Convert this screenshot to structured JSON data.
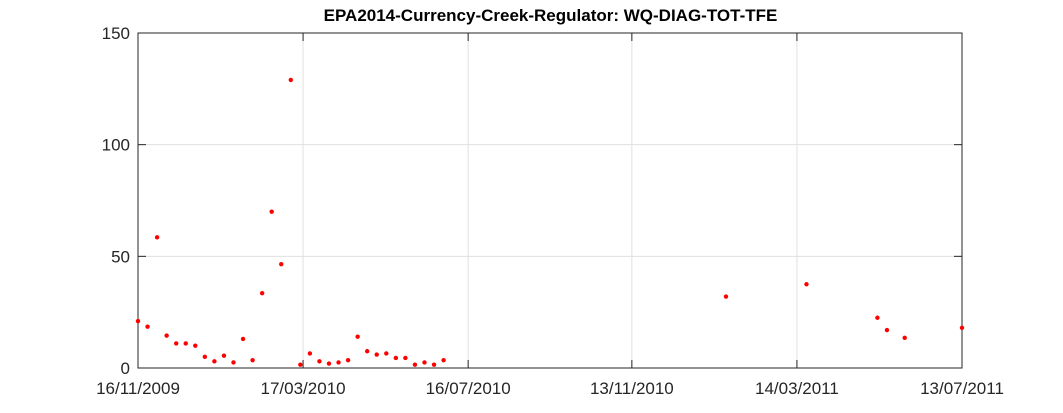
{
  "chart_data": {
    "type": "scatter",
    "title": "EPA2014-Currency-Creek-Regulator: WQ-DIAG-TOT-TFE",
    "xlabel": "",
    "ylabel": "",
    "xlim": [
      "2009-11-16",
      "2011-07-13"
    ],
    "ylim": [
      0,
      150
    ],
    "x_ticks": [
      "2009-11-16",
      "2010-03-17",
      "2010-07-16",
      "2010-11-13",
      "2011-03-14",
      "2011-07-13"
    ],
    "x_tick_labels": [
      "16/11/2009",
      "17/03/2010",
      "16/07/2010",
      "13/11/2010",
      "14/03/2011",
      "13/07/2011"
    ],
    "y_ticks": [
      0,
      50,
      100,
      150
    ],
    "y_tick_labels": [
      "0",
      "50",
      "100",
      "150"
    ],
    "grid": true,
    "marker_color": "#ff0000",
    "series": [
      {
        "points": [
          {
            "x": "2009-11-16",
            "y": 21
          },
          {
            "x": "2009-11-23",
            "y": 18.5
          },
          {
            "x": "2009-11-30",
            "y": 58.5
          },
          {
            "x": "2009-12-07",
            "y": 14.5
          },
          {
            "x": "2009-12-14",
            "y": 11
          },
          {
            "x": "2009-12-21",
            "y": 11
          },
          {
            "x": "2009-12-28",
            "y": 10
          },
          {
            "x": "2010-01-04",
            "y": 5
          },
          {
            "x": "2010-01-11",
            "y": 3
          },
          {
            "x": "2010-01-18",
            "y": 5.5
          },
          {
            "x": "2010-01-25",
            "y": 2.5
          },
          {
            "x": "2010-02-01",
            "y": 13
          },
          {
            "x": "2010-02-08",
            "y": 3.5
          },
          {
            "x": "2010-02-15",
            "y": 33.5
          },
          {
            "x": "2010-02-22",
            "y": 70
          },
          {
            "x": "2010-03-01",
            "y": 46.5
          },
          {
            "x": "2010-03-08",
            "y": 129
          },
          {
            "x": "2010-03-15",
            "y": 1.5
          },
          {
            "x": "2010-03-22",
            "y": 6.5
          },
          {
            "x": "2010-03-29",
            "y": 3
          },
          {
            "x": "2010-04-05",
            "y": 2
          },
          {
            "x": "2010-04-12",
            "y": 2.5
          },
          {
            "x": "2010-04-19",
            "y": 3.5
          },
          {
            "x": "2010-04-26",
            "y": 14
          },
          {
            "x": "2010-05-03",
            "y": 7.5
          },
          {
            "x": "2010-05-10",
            "y": 6
          },
          {
            "x": "2010-05-17",
            "y": 6.5
          },
          {
            "x": "2010-05-24",
            "y": 4.5
          },
          {
            "x": "2010-05-31",
            "y": 4.5
          },
          {
            "x": "2010-06-07",
            "y": 1.5
          },
          {
            "x": "2010-06-14",
            "y": 2.5
          },
          {
            "x": "2010-06-21",
            "y": 1.5
          },
          {
            "x": "2010-06-28",
            "y": 3.5
          },
          {
            "x": "2011-01-21",
            "y": 32
          },
          {
            "x": "2011-03-21",
            "y": 37.5
          },
          {
            "x": "2011-05-12",
            "y": 22.5
          },
          {
            "x": "2011-05-19",
            "y": 17
          },
          {
            "x": "2011-06-01",
            "y": 13.5
          },
          {
            "x": "2011-07-13",
            "y": 18
          }
        ]
      }
    ]
  }
}
